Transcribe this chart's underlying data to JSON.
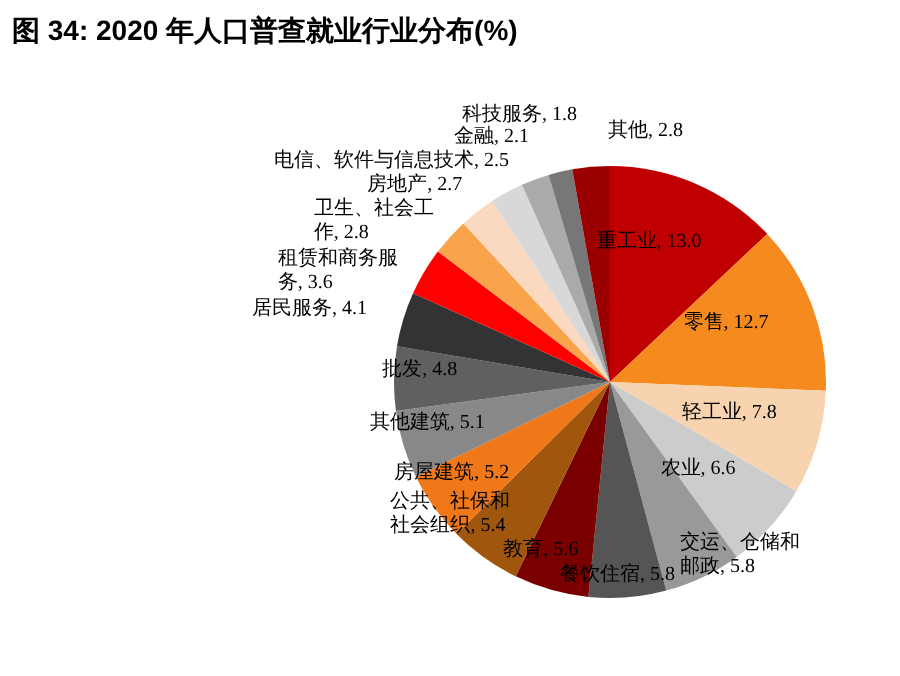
{
  "chart_data": {
    "type": "pie",
    "title": "图 34: 2020 年人口普查就业行业分布(%)",
    "categories": [
      "重工业",
      "零售",
      "轻工业",
      "农业",
      "交运、仓储和邮政",
      "餐饮住宿",
      "教育",
      "公共、社保和社会组织",
      "房屋建筑",
      "其他建筑",
      "批发",
      "居民服务",
      "租赁和商务服务",
      "卫生、社会工作",
      "房地产",
      "电信、软件与信息技术",
      "金融",
      "科技服务",
      "其他"
    ],
    "values": [
      13.0,
      12.7,
      7.8,
      6.6,
      5.8,
      5.8,
      5.6,
      5.4,
      5.2,
      5.1,
      4.8,
      4.1,
      3.6,
      2.8,
      2.7,
      2.5,
      2.1,
      1.8,
      2.8
    ],
    "value_labels": [
      ", 13.0",
      ", 12.7",
      ", 7.8",
      ", 6.6",
      ", 5.8",
      ", 5.8",
      ", 5.6",
      ", 5.4",
      ", 5.2",
      ", 5.1",
      ", 4.8",
      ", 4.1",
      ", 3.6",
      ", 2.8",
      ", 2.7",
      ", 2.5",
      ", 2.1",
      ", 1.8",
      ", 2.8"
    ],
    "colors": [
      "#c00000",
      "#f58b1f",
      "#f8d3b0",
      "#cccccc",
      "#999999",
      "#555555",
      "#7a0000",
      "#a0560c",
      "#f07818",
      "#888888",
      "#606060",
      "#333333",
      "#ff0000",
      "#f9a44a",
      "#fbd9c0",
      "#d8d8d8",
      "#aaaaaa",
      "#777777",
      "#9a0000"
    ],
    "legend": false
  }
}
